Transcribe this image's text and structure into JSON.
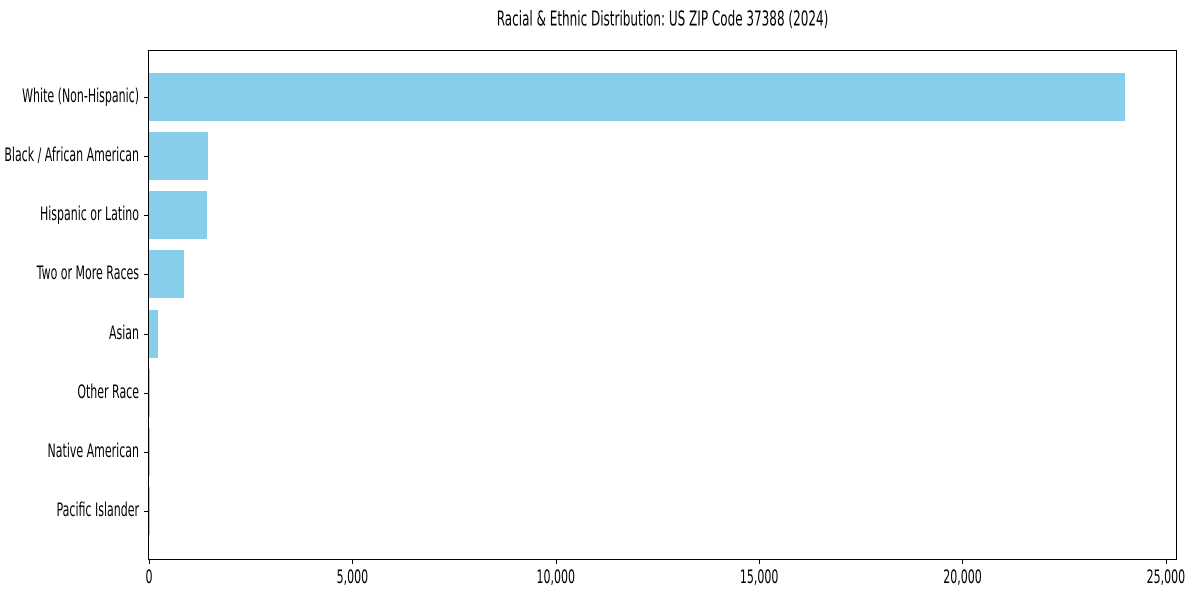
{
  "chart_data": {
    "type": "bar",
    "orientation": "horizontal",
    "title": "Racial & Ethnic Distribution: US ZIP Code 37388 (2024)",
    "xlabel": "",
    "ylabel": "",
    "categories": [
      "White (Non-Hispanic)",
      "Black / African American",
      "Hispanic or Latino",
      "Two or More Races",
      "Asian",
      "Other Race",
      "Native American",
      "Pacific Islander"
    ],
    "values": [
      24000,
      1450,
      1420,
      850,
      210,
      35,
      15,
      5
    ],
    "xlim": [
      0,
      25250
    ],
    "xticks": [
      0,
      5000,
      10000,
      15000,
      20000,
      25000
    ],
    "xtick_labels": [
      "0",
      "5,000",
      "10,000",
      "15,000",
      "20,000",
      "25,000"
    ],
    "bar_color": "#87CEEB",
    "axis_color": "#000000",
    "text_color": "#000000",
    "grid": false,
    "legend": null
  }
}
